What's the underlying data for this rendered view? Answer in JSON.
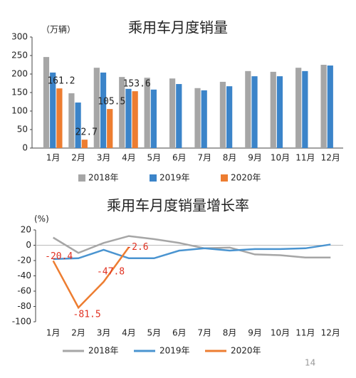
{
  "chart_data": [
    {
      "type": "bar",
      "title": "乘用车月度销量",
      "y_label": "（万辆）",
      "categories": [
        "1月",
        "2月",
        "3月",
        "4月",
        "5月",
        "6月",
        "7月",
        "8月",
        "9月",
        "10月",
        "11月",
        "12月"
      ],
      "series": [
        {
          "name": "2018年",
          "color": "#a6a6a6",
          "values": [
            246,
            148,
            217,
            192,
            190,
            188,
            162,
            179,
            208,
            206,
            217,
            225
          ]
        },
        {
          "name": "2019年",
          "color": "#3b84c9",
          "values": [
            204,
            123,
            204,
            160,
            158,
            173,
            156,
            167,
            194,
            194,
            208,
            223
          ]
        },
        {
          "name": "2020年",
          "color": "#ed7d31",
          "values": [
            161.2,
            22.7,
            105.5,
            153.6,
            null,
            null,
            null,
            null,
            null,
            null,
            null,
            null
          ]
        }
      ],
      "ylim": [
        0,
        300
      ],
      "yticks": [
        0,
        50,
        100,
        150,
        200,
        250,
        300
      ]
    },
    {
      "type": "line",
      "title": "乘用车月度销量增长率",
      "y_label": "(%)",
      "categories": [
        "1月",
        "2月",
        "3月",
        "4月",
        "5月",
        "6月",
        "7月",
        "8月",
        "9月",
        "10月",
        "11月",
        "12月"
      ],
      "series": [
        {
          "name": "2018年",
          "color": "#a6a6a6",
          "values": [
            10,
            -10,
            3,
            12,
            8,
            3,
            -4,
            -3,
            -12,
            -13,
            -16,
            -16
          ]
        },
        {
          "name": "2019年",
          "color": "#4a94d0",
          "values": [
            -18,
            -17,
            -6,
            -17,
            -17,
            -7,
            -4,
            -7,
            -5,
            -5,
            -4,
            1
          ]
        },
        {
          "name": "2020年",
          "color": "#ed7d31",
          "values": [
            -20.4,
            -81.5,
            -47.8,
            -2.6,
            null,
            null,
            null,
            null,
            null,
            null,
            null,
            null
          ]
        }
      ],
      "ylim": [
        -100,
        20
      ],
      "yticks": [
        20,
        0,
        -20,
        -40,
        -60,
        -80,
        -100
      ]
    }
  ],
  "page_number": "14"
}
